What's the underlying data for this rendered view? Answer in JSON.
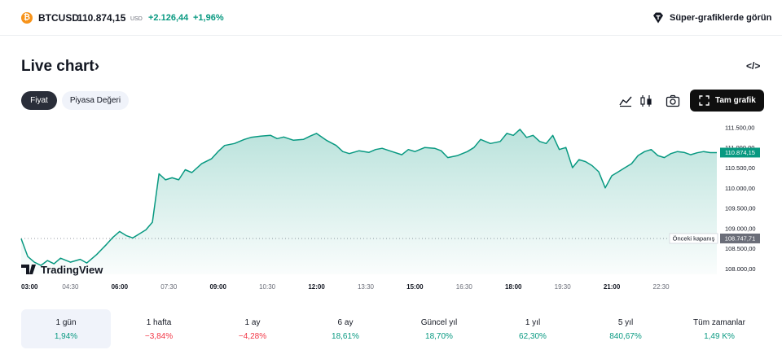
{
  "ticker": {
    "coin_glyph": "₿",
    "symbol": "BTCUSD",
    "price": "110.874,15",
    "currency": "USD",
    "change": "+2.126,44",
    "change_pct": "+1,96%",
    "positive_color": "#089981",
    "negative_color": "#f23645"
  },
  "header": {
    "super_charts_label": "Süper-grafiklerde görün"
  },
  "section": {
    "title": "Live chart",
    "title_chevron": "›",
    "embed_icon_glyph": "</>"
  },
  "tabs": [
    {
      "label": "Fiyat",
      "active": true
    },
    {
      "label": "Piyasa Değeri",
      "active": false
    }
  ],
  "toolbar": {
    "full_chart_label": "Tam grafik"
  },
  "chart_data": {
    "type": "area",
    "line_color": "#089981",
    "fill_color": "#089981",
    "x_ticks": [
      {
        "label": "03:00",
        "bold": true
      },
      {
        "label": "04:30",
        "bold": false
      },
      {
        "label": "06:00",
        "bold": true
      },
      {
        "label": "07:30",
        "bold": false
      },
      {
        "label": "09:00",
        "bold": true
      },
      {
        "label": "10:30",
        "bold": false
      },
      {
        "label": "12:00",
        "bold": true
      },
      {
        "label": "13:30",
        "bold": false
      },
      {
        "label": "15:00",
        "bold": true
      },
      {
        "label": "16:30",
        "bold": false
      },
      {
        "label": "18:00",
        "bold": true
      },
      {
        "label": "19:30",
        "bold": false
      },
      {
        "label": "21:00",
        "bold": true
      },
      {
        "label": "22:30",
        "bold": false
      }
    ],
    "y_ticks": [
      "111.500,00",
      "111.000,00",
      "110.500,00",
      "110.000,00",
      "109.500,00",
      "109.000,00",
      "108.500,00",
      "108.000,00"
    ],
    "y_tick_values": [
      111500,
      111000,
      110500,
      110000,
      109500,
      109000,
      108500,
      108000
    ],
    "ylim": [
      107860,
      111730
    ],
    "x_hours_range": [
      3,
      24.2
    ],
    "current_price_label": "110.874,15",
    "current_price_value": 110874.15,
    "previous_close_label": "Önceki kapanış",
    "previous_close_price_label": "108.747,71",
    "previous_close_value": 108747.71,
    "watermark": "TradingView",
    "series": [
      {
        "x": [
          3.0,
          3.2,
          3.4,
          3.6,
          3.8,
          4.0,
          4.2,
          4.5,
          4.8,
          5.0,
          5.3,
          5.6,
          5.8,
          6.0,
          6.2,
          6.4,
          6.6,
          6.8,
          7.0,
          7.2,
          7.4,
          7.6,
          7.8,
          8.0,
          8.2,
          8.5,
          8.8,
          9.0,
          9.2,
          9.5,
          9.8,
          10.0,
          10.3,
          10.6,
          10.8,
          11.0,
          11.3,
          11.6,
          11.8,
          12.0,
          12.3,
          12.6,
          12.8,
          13.0,
          13.3,
          13.6,
          13.8,
          14.0,
          14.3,
          14.6,
          14.8,
          15.0,
          15.3,
          15.6,
          15.8,
          16.0,
          16.3,
          16.6,
          16.8,
          17.0,
          17.3,
          17.6,
          17.8,
          18.0,
          18.2,
          18.4,
          18.6,
          18.8,
          19.0,
          19.2,
          19.4,
          19.6,
          19.8,
          20.0,
          20.2,
          20.4,
          20.6,
          20.8,
          21.0,
          21.2,
          21.4,
          21.6,
          21.8,
          22.0,
          22.2,
          22.4,
          22.6,
          22.8,
          23.0,
          23.2,
          23.4,
          23.6,
          23.8,
          24.0,
          24.2
        ],
        "values": [
          108740,
          108300,
          108160,
          108080,
          108200,
          108120,
          108260,
          108160,
          108230,
          108140,
          108350,
          108600,
          108780,
          108920,
          108820,
          108760,
          108860,
          108960,
          109150,
          110350,
          110200,
          110250,
          110200,
          110450,
          110380,
          110600,
          110720,
          110900,
          111050,
          111100,
          111200,
          111250,
          111280,
          111300,
          111220,
          111260,
          111180,
          111200,
          111280,
          111350,
          111180,
          111050,
          110900,
          110850,
          110920,
          110880,
          110950,
          110980,
          110900,
          110820,
          110950,
          110900,
          111000,
          110980,
          110920,
          110750,
          110800,
          110900,
          111000,
          111200,
          111100,
          111150,
          111350,
          111300,
          111450,
          111250,
          111300,
          111150,
          111100,
          111300,
          110950,
          111000,
          110500,
          110700,
          110650,
          110550,
          110400,
          110000,
          110300,
          110400,
          110500,
          110600,
          110800,
          110900,
          110950,
          110800,
          110750,
          110850,
          110900,
          110880,
          110820,
          110870,
          110900,
          110874,
          110874
        ]
      }
    ]
  },
  "periods": [
    {
      "label": "1 gün",
      "value": "1,94%",
      "positive": true,
      "active": true
    },
    {
      "label": "1 hafta",
      "value": "−3,84%",
      "positive": false,
      "active": false
    },
    {
      "label": "1 ay",
      "value": "−4,28%",
      "positive": false,
      "active": false
    },
    {
      "label": "6 ay",
      "value": "18,61%",
      "positive": true,
      "active": false
    },
    {
      "label": "Güncel yıl",
      "value": "18,70%",
      "positive": true,
      "active": false
    },
    {
      "label": "1 yıl",
      "value": "62,30%",
      "positive": true,
      "active": false
    },
    {
      "label": "5 yıl",
      "value": "840,67%",
      "positive": true,
      "active": false
    },
    {
      "label": "Tüm zamanlar",
      "value": "1,49 K%",
      "positive": true,
      "active": false
    }
  ]
}
